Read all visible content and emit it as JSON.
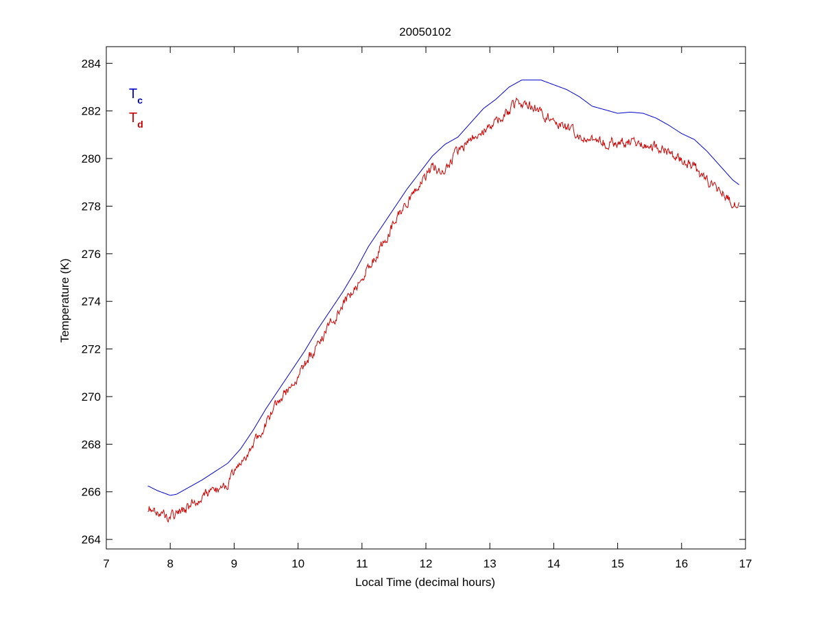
{
  "chart_data": {
    "type": "line",
    "title": "20050102",
    "xlabel": "Local Time (decimal hours)",
    "ylabel": "Temperature (K)",
    "xlim": [
      7,
      17
    ],
    "ylim": [
      263.6,
      284.7
    ],
    "xticks": [
      7,
      8,
      9,
      10,
      11,
      12,
      13,
      14,
      15,
      16,
      17
    ],
    "yticks": [
      264,
      266,
      268,
      270,
      272,
      274,
      276,
      278,
      280,
      282,
      284
    ],
    "grid": false,
    "legend": {
      "placement": "top-left",
      "entries": [
        {
          "main": "T",
          "sub": "c",
          "color": "#0000cc"
        },
        {
          "main": "T",
          "sub": "d",
          "color": "#cc0000"
        }
      ]
    },
    "series": [
      {
        "key": "Tc",
        "color": "#0000cc",
        "noise": 0,
        "x": [
          7.65,
          7.8,
          8.0,
          8.1,
          8.3,
          8.5,
          8.7,
          8.9,
          9.1,
          9.3,
          9.5,
          9.7,
          9.9,
          10.1,
          10.3,
          10.5,
          10.7,
          10.9,
          11.1,
          11.3,
          11.5,
          11.7,
          11.9,
          12.1,
          12.3,
          12.5,
          12.7,
          12.9,
          13.1,
          13.3,
          13.5,
          13.8,
          14.0,
          14.2,
          14.4,
          14.6,
          14.8,
          15.0,
          15.2,
          15.4,
          15.6,
          15.8,
          16.0,
          16.2,
          16.4,
          16.6,
          16.8,
          16.9
        ],
        "y": [
          266.25,
          266.05,
          265.85,
          265.9,
          266.2,
          266.5,
          266.85,
          267.2,
          267.8,
          268.6,
          269.5,
          270.3,
          271.1,
          271.9,
          272.8,
          273.6,
          274.4,
          275.3,
          276.3,
          277.1,
          277.9,
          278.7,
          279.4,
          280.1,
          280.6,
          280.9,
          281.5,
          282.1,
          282.5,
          283.0,
          283.3,
          283.3,
          283.1,
          282.9,
          282.6,
          282.2,
          282.05,
          281.9,
          281.95,
          281.9,
          281.7,
          281.4,
          281.05,
          280.8,
          280.3,
          279.7,
          279.1,
          278.9
        ]
      },
      {
        "key": "Td",
        "color": "#cc0000",
        "noise": 0.18,
        "x": [
          7.65,
          7.8,
          8.0,
          8.1,
          8.3,
          8.5,
          8.7,
          8.9,
          9.1,
          9.3,
          9.5,
          9.7,
          9.9,
          10.1,
          10.3,
          10.5,
          10.7,
          10.9,
          11.1,
          11.3,
          11.5,
          11.7,
          11.9,
          12.1,
          12.3,
          12.5,
          12.7,
          12.9,
          13.1,
          13.3,
          13.45,
          13.6,
          13.8,
          14.0,
          14.2,
          14.4,
          14.6,
          14.8,
          15.0,
          15.2,
          15.4,
          15.6,
          15.8,
          16.0,
          16.2,
          16.4,
          16.6,
          16.8,
          16.9
        ],
        "y": [
          265.35,
          265.15,
          264.95,
          265.05,
          265.4,
          265.8,
          266.0,
          266.4,
          267.1,
          268.0,
          268.9,
          269.8,
          270.5,
          271.3,
          272.2,
          273.0,
          273.8,
          274.6,
          275.4,
          276.3,
          277.3,
          278.1,
          278.9,
          279.6,
          279.6,
          280.3,
          280.8,
          281.1,
          281.6,
          282.0,
          282.4,
          282.3,
          281.9,
          281.6,
          281.3,
          281.0,
          280.8,
          280.7,
          280.7,
          280.7,
          280.6,
          280.5,
          280.2,
          280.0,
          279.6,
          279.0,
          278.6,
          278.2,
          278.0
        ]
      }
    ]
  }
}
